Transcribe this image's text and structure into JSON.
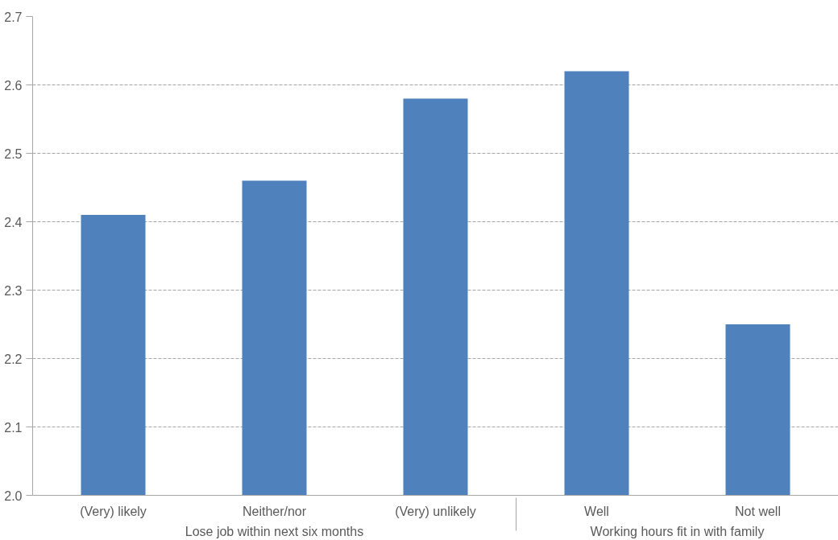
{
  "chart_data": {
    "type": "bar",
    "categories": [
      "(Very) likely",
      "Neither/nor",
      "(Very) unlikely",
      "Well",
      "Not well"
    ],
    "values": [
      2.41,
      2.46,
      2.58,
      2.62,
      2.25
    ],
    "color": "#4f81bd",
    "ylim": [
      2.0,
      2.7
    ],
    "yticks": [
      {
        "value": 2,
        "label": "2.0"
      },
      2.1,
      2.2,
      2.3,
      2.4,
      2.5,
      2.6,
      2.7
    ],
    "grid": "y",
    "annotations": [
      "Lose job within next six months",
      "Working hours fit in with family"
    ]
  }
}
